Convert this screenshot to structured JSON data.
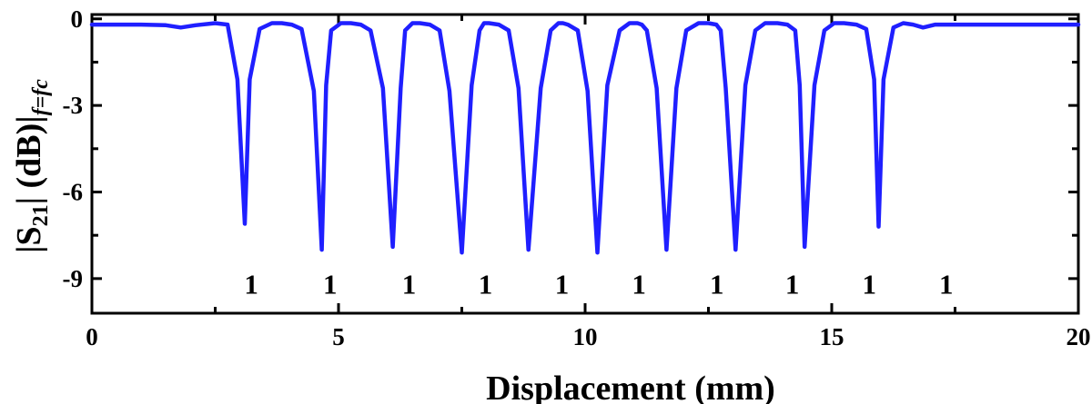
{
  "chart_data": {
    "type": "line",
    "xlabel": "Displacement (mm)",
    "ylabel": {
      "main": "|S",
      "sub": "21",
      "rest": "| (dB)|",
      "cond": "f=fc"
    },
    "xlim": [
      0,
      20
    ],
    "ylim": [
      -10.2,
      0.15
    ],
    "x_ticks": [
      0,
      5,
      10,
      15,
      20
    ],
    "x_tick_labels": [
      "0",
      "5",
      "10",
      "15",
      "20"
    ],
    "y_ticks": [
      0,
      -3,
      -6,
      -9
    ],
    "y_tick_labels": [
      "0",
      "-3",
      "-6",
      "-9"
    ],
    "grid": false,
    "legend": "none",
    "line_color": "#1f1fff",
    "series": [
      {
        "x": [
          0,
          0.5,
          1.0,
          1.5,
          1.8,
          2.1,
          2.5,
          2.75,
          2.95,
          3.1,
          3.2,
          3.4,
          3.65,
          3.85,
          4.05,
          4.25,
          4.5,
          4.66,
          4.75,
          4.85,
          5.05,
          5.25,
          5.45,
          5.65,
          5.9,
          6.1,
          6.26,
          6.35,
          6.5,
          6.65,
          6.85,
          7.05,
          7.25,
          7.5,
          7.7,
          7.86,
          7.95,
          8.05,
          8.25,
          8.45,
          8.65,
          8.85,
          9.1,
          9.3,
          9.46,
          9.55,
          9.65,
          9.85,
          10.05,
          10.25,
          10.45,
          10.7,
          10.9,
          11.06,
          11.15,
          11.25,
          11.45,
          11.65,
          11.85,
          12.05,
          12.3,
          12.5,
          12.66,
          12.75,
          12.85,
          13.05,
          13.25,
          13.45,
          13.65,
          13.9,
          14.1,
          14.26,
          14.35,
          14.45,
          14.65,
          14.85,
          15.05,
          15.25,
          15.5,
          15.7,
          15.86,
          15.95,
          16.05,
          16.25,
          16.45,
          16.65,
          16.85,
          17.1,
          17.3,
          17.44,
          17.55,
          17.65,
          17.85,
          18.05,
          18.25,
          18.5,
          18.8,
          19.1,
          19.5,
          20.0
        ],
        "y": [
          -0.2,
          -0.2,
          -0.2,
          -0.22,
          -0.3,
          -0.22,
          -0.15,
          -0.2,
          -2.1,
          -7.1,
          -2.1,
          -0.35,
          -0.15,
          -0.15,
          -0.2,
          -0.35,
          -2.5,
          -8.0,
          -2.3,
          -0.4,
          -0.15,
          -0.15,
          -0.2,
          -0.4,
          -2.4,
          -7.9,
          -2.4,
          -0.4,
          -0.15,
          -0.15,
          -0.2,
          -0.4,
          -2.5,
          -8.1,
          -2.3,
          -0.4,
          -0.15,
          -0.15,
          -0.2,
          -0.4,
          -2.4,
          -8.0,
          -2.4,
          -0.4,
          -0.15,
          -0.15,
          -0.2,
          -0.4,
          -2.5,
          -8.1,
          -2.3,
          -0.4,
          -0.15,
          -0.15,
          -0.2,
          -0.4,
          -2.4,
          -8.0,
          -2.4,
          -0.4,
          -0.15,
          -0.15,
          -0.2,
          -0.4,
          -2.4,
          -8.0,
          -2.3,
          -0.4,
          -0.15,
          -0.15,
          -0.2,
          -0.4,
          -2.3,
          -7.9,
          -2.3,
          -0.4,
          -0.15,
          -0.15,
          -0.2,
          -0.35,
          -2.1,
          -7.2,
          -2.1,
          -0.3,
          -0.15,
          -0.2,
          -0.3,
          -0.2,
          -0.2,
          -0.2,
          -0.2,
          -0.2,
          -0.2,
          -0.2,
          -0.2,
          -0.2,
          -0.2,
          -0.2,
          -0.2,
          -0.2
        ]
      }
    ],
    "annotations": [
      {
        "text": "1",
        "x": 3.23,
        "y": -9.15
      },
      {
        "text": "1",
        "x": 4.83,
        "y": -9.15
      },
      {
        "text": "1",
        "x": 6.43,
        "y": -9.15
      },
      {
        "text": "1",
        "x": 7.98,
        "y": -9.15
      },
      {
        "text": "1",
        "x": 9.53,
        "y": -9.15
      },
      {
        "text": "1",
        "x": 11.09,
        "y": -9.15
      },
      {
        "text": "1",
        "x": 12.67,
        "y": -9.15
      },
      {
        "text": "1",
        "x": 14.2,
        "y": -9.15
      },
      {
        "text": "1",
        "x": 15.76,
        "y": -9.15
      },
      {
        "text": "1",
        "x": 17.32,
        "y": -9.15
      }
    ]
  }
}
